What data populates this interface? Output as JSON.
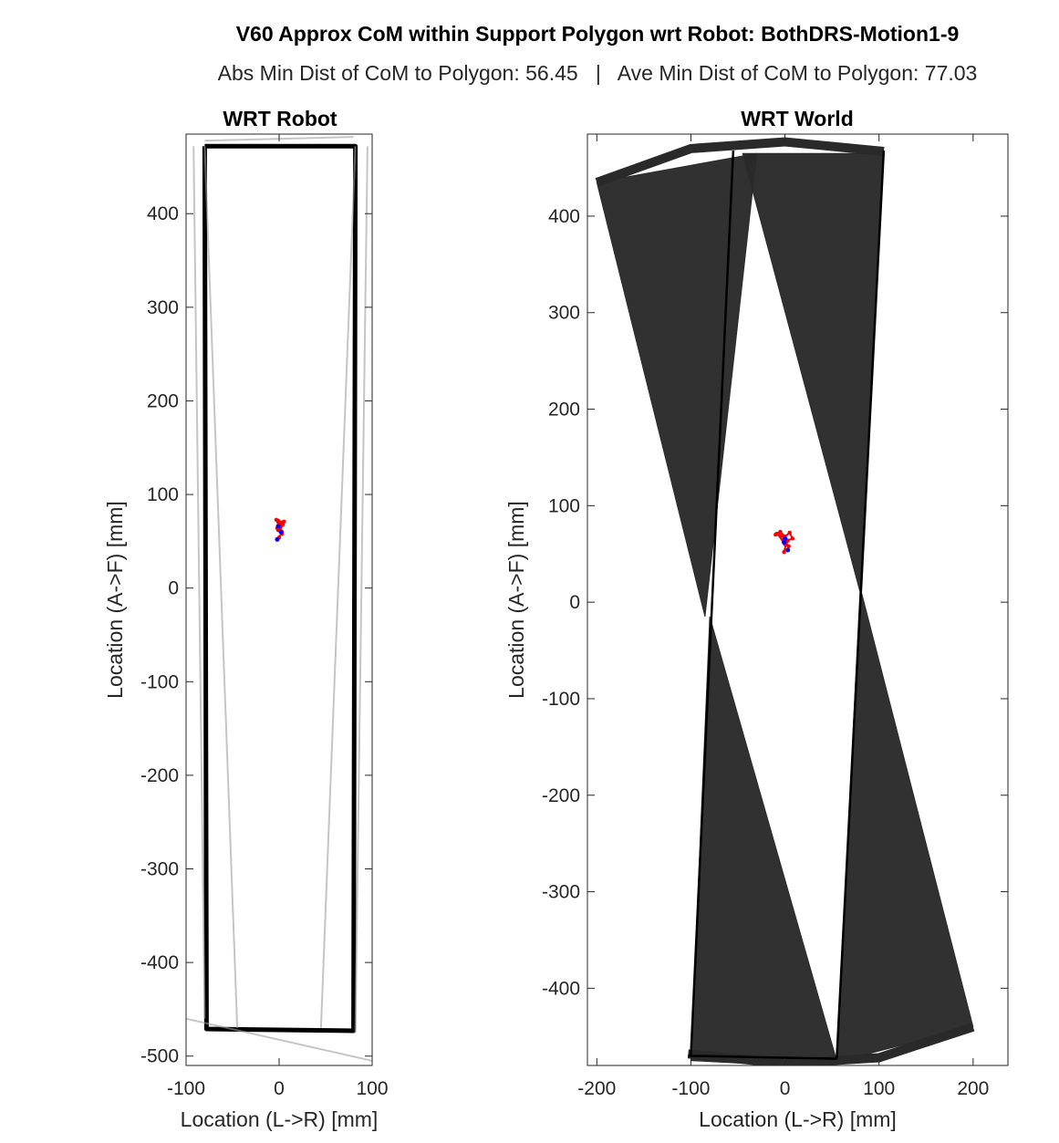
{
  "figure": {
    "title": "V60 Approx CoM within Support Polygon wrt Robot: BothDRS-Motion1-9",
    "subtitle": "Abs Min Dist of CoM to Polygon: 56.45   |   Ave Min Dist of CoM to Polygon: 77.03"
  },
  "chart_data": [
    {
      "type": "line",
      "title": "WRT Robot",
      "xlabel": "Location (L->R) [mm]",
      "ylabel": "Location (A->F) [mm]",
      "xlim": [
        -100,
        100
      ],
      "ylim": [
        -510,
        485
      ],
      "xticks": [
        -100,
        0,
        100
      ],
      "yticks": [
        -500,
        -400,
        -300,
        -200,
        -100,
        0,
        100,
        200,
        300,
        400
      ],
      "grid": false,
      "series": [
        {
          "role": "support-polygon",
          "color": "#000000",
          "x": [
            -80,
            82,
            80,
            -78,
            -80
          ],
          "y": [
            472,
            472,
            -473,
            -471,
            472
          ]
        },
        {
          "role": "polygon-traces",
          "color": "#9e9e9e",
          "lines": [
            {
              "x": [
                -80,
                -45,
                -45,
                -80
              ],
              "y": [
                472,
                -470,
                -470,
                472
              ]
            },
            {
              "x": [
                82,
                45,
                45,
                82
              ],
              "y": [
                472,
                -470,
                -470,
                472
              ]
            },
            {
              "x": [
                -92,
                -80
              ],
              "y": [
                472,
                -460
              ]
            },
            {
              "x": [
                95,
                82
              ],
              "y": [
                472,
                -475
              ]
            },
            {
              "x": [
                -100,
                100
              ],
              "y": [
                -460,
                -505
              ]
            },
            {
              "x": [
                -80,
                80
              ],
              "y": [
                478,
                482
              ]
            }
          ]
        },
        {
          "role": "com-trajectory",
          "color": "#ff0000",
          "x": [
            0,
            3,
            -2,
            4,
            1,
            -1,
            2,
            5,
            0,
            -3,
            1,
            3,
            -1,
            0,
            2
          ],
          "y": [
            54,
            60,
            64,
            68,
            70,
            72,
            66,
            71,
            69,
            73,
            63,
            58,
            62,
            67,
            70
          ]
        },
        {
          "role": "com-points",
          "color": "#0000ff",
          "x": [
            -2,
            2,
            -1
          ],
          "y": [
            52,
            60,
            66
          ]
        }
      ]
    },
    {
      "type": "line",
      "title": "WRT World",
      "xlabel": "Location (L->R) [mm]",
      "ylabel": "Location (A->F) [mm]",
      "xlim": [
        -210,
        237
      ],
      "ylim": [
        -480,
        485
      ],
      "xticks": [
        -200,
        -100,
        0,
        100,
        200
      ],
      "yticks": [
        -400,
        -300,
        -200,
        -100,
        0,
        100,
        200,
        300,
        400
      ],
      "grid": false,
      "series": [
        {
          "role": "polygon-sweep",
          "color": "#2a2a2a",
          "wedges": [
            {
              "x": [
                -200,
                -85,
                -30
              ],
              "y": [
                435,
                -15,
                465
              ]
            },
            {
              "x": [
                -45,
                80,
                105
              ],
              "y": [
                465,
                10,
                465
              ]
            },
            {
              "x": [
                -100,
                -80,
                55,
                0
              ],
              "y": [
                -475,
                -15,
                -475,
                -480
              ]
            },
            {
              "x": [
                80,
                200,
                60,
                55
              ],
              "y": [
                15,
                -440,
                -475,
                -475
              ]
            }
          ]
        },
        {
          "role": "sweep-envelope",
          "color": "#2a2a2a",
          "x": [
            -200,
            -100,
            0,
            105
          ],
          "y": [
            435,
            470,
            477,
            467
          ]
        },
        {
          "role": "sweep-envelope",
          "color": "#2a2a2a",
          "x": [
            -103,
            0,
            100,
            200
          ],
          "y": [
            -468,
            -478,
            -472,
            -440
          ]
        },
        {
          "role": "support-polygon",
          "color": "#000000",
          "lines": [
            {
              "x": [
                -55,
                -100
              ],
              "y": [
                468,
                -470
              ]
            },
            {
              "x": [
                105,
                55
              ],
              "y": [
                468,
                -473
              ]
            },
            {
              "x": [
                -103,
                55
              ],
              "y": [
                -470,
                -473
              ]
            }
          ]
        },
        {
          "role": "com-trajectory",
          "color": "#ff0000",
          "x": [
            -10,
            -5,
            0,
            5,
            8,
            3,
            -3,
            -8,
            0,
            4,
            -2,
            2,
            -1
          ],
          "y": [
            70,
            73,
            68,
            72,
            66,
            64,
            69,
            71,
            60,
            58,
            65,
            63,
            52
          ]
        },
        {
          "role": "com-points",
          "color": "#0000ff",
          "x": [
            3,
            -1,
            0
          ],
          "y": [
            54,
            62,
            66
          ]
        }
      ]
    }
  ]
}
